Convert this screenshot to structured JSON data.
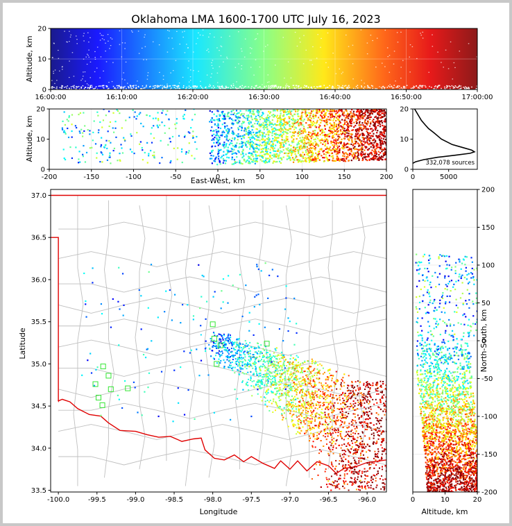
{
  "title": "Oklahoma LMA 1600-1700 UTC July 16, 2023",
  "chart_data": [
    {
      "panel": "altitude-vs-time",
      "type": "scatter",
      "ylabel": "Altitude, km",
      "xlim": [
        "16:00:00",
        "17:00:00"
      ],
      "ylim": [
        0,
        20
      ],
      "x_ticks": [
        "16:00:00",
        "16:10:00",
        "16:20:00",
        "16:30:00",
        "16:40:00",
        "16:50:00",
        "17:00:00"
      ],
      "y_ticks": [
        "0",
        "10",
        "20"
      ],
      "color_encoding": "time",
      "grid": true
    },
    {
      "panel": "altitude-vs-east-west",
      "type": "scatter",
      "xlabel": "East-West, km",
      "ylabel": "Altitude, km",
      "xlim": [
        -200,
        200
      ],
      "ylim": [
        0,
        20
      ],
      "x_ticks": [
        "-200",
        "-150",
        "-100",
        "-50",
        "0",
        "50",
        "100",
        "150",
        "200"
      ],
      "y_ticks": [
        "0",
        "10",
        "20"
      ],
      "grid": true
    },
    {
      "panel": "source-count-histogram",
      "type": "line",
      "xlim": [
        0,
        9000
      ],
      "ylim": [
        0,
        20
      ],
      "x_ticks": [
        "0",
        "5000"
      ],
      "y_ticks": [
        "0",
        "10",
        "20"
      ],
      "annotation": "332,078 sources",
      "series": [
        {
          "x": [
            0,
            400,
            1500,
            3500,
            6000,
            8000,
            8600,
            8200,
            7000,
            5500,
            4000,
            3000,
            2200,
            1700,
            1200,
            800,
            500,
            250
          ],
          "y": [
            2,
            2.5,
            3.2,
            4.0,
            4.7,
            5.3,
            5.8,
            6.4,
            7.2,
            8.2,
            10,
            12,
            13.5,
            14.8,
            16.2,
            17.8,
            19.0,
            20
          ]
        }
      ]
    },
    {
      "panel": "plan-view-map",
      "type": "scatter",
      "xlabel": "Longitude",
      "ylabel": "Latitude",
      "xlim": [
        -100.1,
        -95.75
      ],
      "ylim": [
        33.48,
        37.07
      ],
      "x_ticks": [
        "-100.0",
        "-99.5",
        "-99.0",
        "-98.5",
        "-98.0",
        "-97.5",
        "-97.0",
        "-96.5",
        "-96.0"
      ],
      "y_ticks": [
        "33.5",
        "34.0",
        "34.5",
        "35.0",
        "35.5",
        "36.0",
        "36.5",
        "37.0"
      ],
      "stations_marker": "green-square",
      "stations": [
        [
          -99.42,
          34.97
        ],
        [
          -99.35,
          34.86
        ],
        [
          -99.52,
          34.76
        ],
        [
          -99.32,
          34.7
        ],
        [
          -99.1,
          34.71
        ],
        [
          -99.48,
          34.6
        ],
        [
          -99.43,
          34.51
        ],
        [
          -98.0,
          35.47
        ],
        [
          -97.98,
          35.3
        ],
        [
          -97.9,
          35.22
        ],
        [
          -97.3,
          35.24
        ],
        [
          -97.95,
          35.0
        ]
      ],
      "grid": true
    },
    {
      "panel": "north-south-vs-altitude",
      "type": "scatter",
      "xlabel": "Altitude, km",
      "ylabel": "North-South, km",
      "xlim": [
        0,
        20
      ],
      "ylim": [
        -200,
        200
      ],
      "x_ticks": [
        "0",
        "10",
        "20"
      ],
      "y_ticks": [
        "-200",
        "-150",
        "-100",
        "-50",
        "0",
        "50",
        "100",
        "150",
        "200"
      ],
      "grid": true
    }
  ]
}
